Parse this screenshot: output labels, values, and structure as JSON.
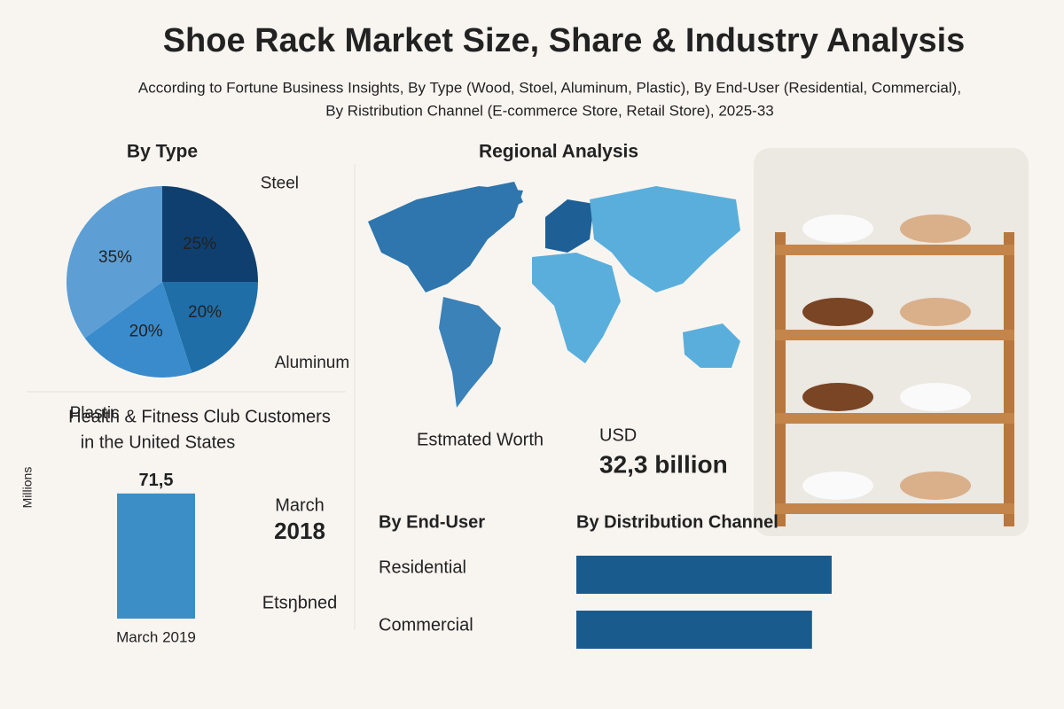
{
  "header": {
    "title": "Shoe Rack Market Size, Share & Industry Analysis",
    "subtitle_lines": [
      "According to Fortune Business Insights, By Type (Wood, Stoel, Aluminum, Plastic), By End-User (Residential, Commercial),",
      "By Ristribution Channel (E-commerce Store, Retail Store), 2025-33"
    ]
  },
  "chart_data": [
    {
      "type": "pie",
      "title": "By Type",
      "categories": [
        "Steel",
        "Aluminum",
        "Plastic",
        null
      ],
      "values": [
        25,
        20,
        20,
        35
      ],
      "value_labels": [
        "25%",
        "20%",
        "20%",
        "35%"
      ],
      "colors": [
        "#0f3f6e",
        "#1f6ea8",
        "#3a8bcb",
        "#5d9fd5"
      ]
    },
    {
      "type": "bar",
      "title_lines": [
        "Health & Fitness Club Customers",
        "in the United States"
      ],
      "y_label": "Millions",
      "categories": [
        "March 2019"
      ],
      "values": [
        71.5
      ],
      "value_labels": [
        "71,5"
      ],
      "color": "#3b8fc6",
      "ylim": [
        0,
        80
      ],
      "annotations": [
        "March",
        "2018",
        "Etsŋbned"
      ]
    },
    {
      "type": "hbar",
      "title": "By Distribution Channel",
      "y_title": "By End-User",
      "categories": [
        "Residential",
        "Commercial"
      ],
      "values": [
        65,
        60
      ],
      "xlim": [
        0,
        100
      ],
      "color": "#1a5b8e"
    }
  ],
  "regional": {
    "title": "Regional Analysis",
    "worth_label": "Estmated Worth",
    "currency": "USD",
    "worth": "32,3 billion"
  }
}
